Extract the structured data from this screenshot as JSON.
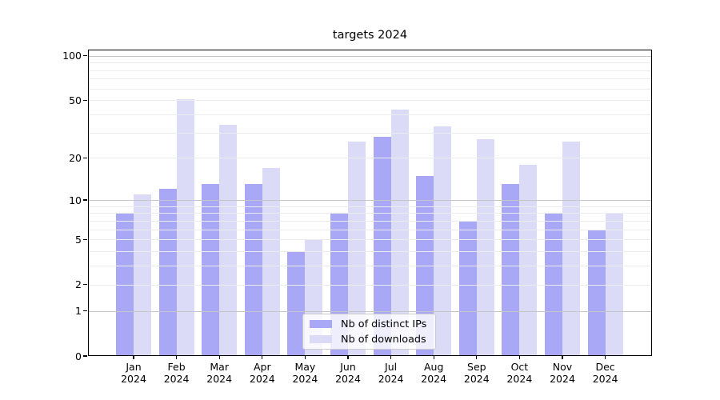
{
  "title": "targets 2024",
  "chart_data": {
    "type": "bar",
    "title": "targets 2024",
    "categories": [
      "Jan",
      "Feb",
      "Mar",
      "Apr",
      "May",
      "Jun",
      "Jul",
      "Aug",
      "Sep",
      "Oct",
      "Nov",
      "Dec"
    ],
    "category_year": "2024",
    "series": [
      {
        "name": "Nb of distinct IPs",
        "color": "#a8a8f6",
        "values": [
          8,
          12,
          13,
          13,
          4,
          8,
          28,
          15,
          7,
          13,
          8,
          6
        ]
      },
      {
        "name": "Nb of downloads",
        "color": "#dbdbf7",
        "values": [
          11,
          51,
          34,
          17,
          5,
          26,
          43,
          33,
          27,
          18,
          26,
          8
        ]
      }
    ],
    "yscale": "log10(1+x)",
    "ylim": [
      0,
      110
    ],
    "yticks": [
      0,
      1,
      2,
      5,
      10,
      20,
      50,
      100
    ],
    "grid": "horizontal major+minor",
    "legend_position": "inside bottom-center",
    "axis_color": "#000000",
    "grid_major_color": "#c6c6c6",
    "grid_minor_color": "#ececec"
  }
}
